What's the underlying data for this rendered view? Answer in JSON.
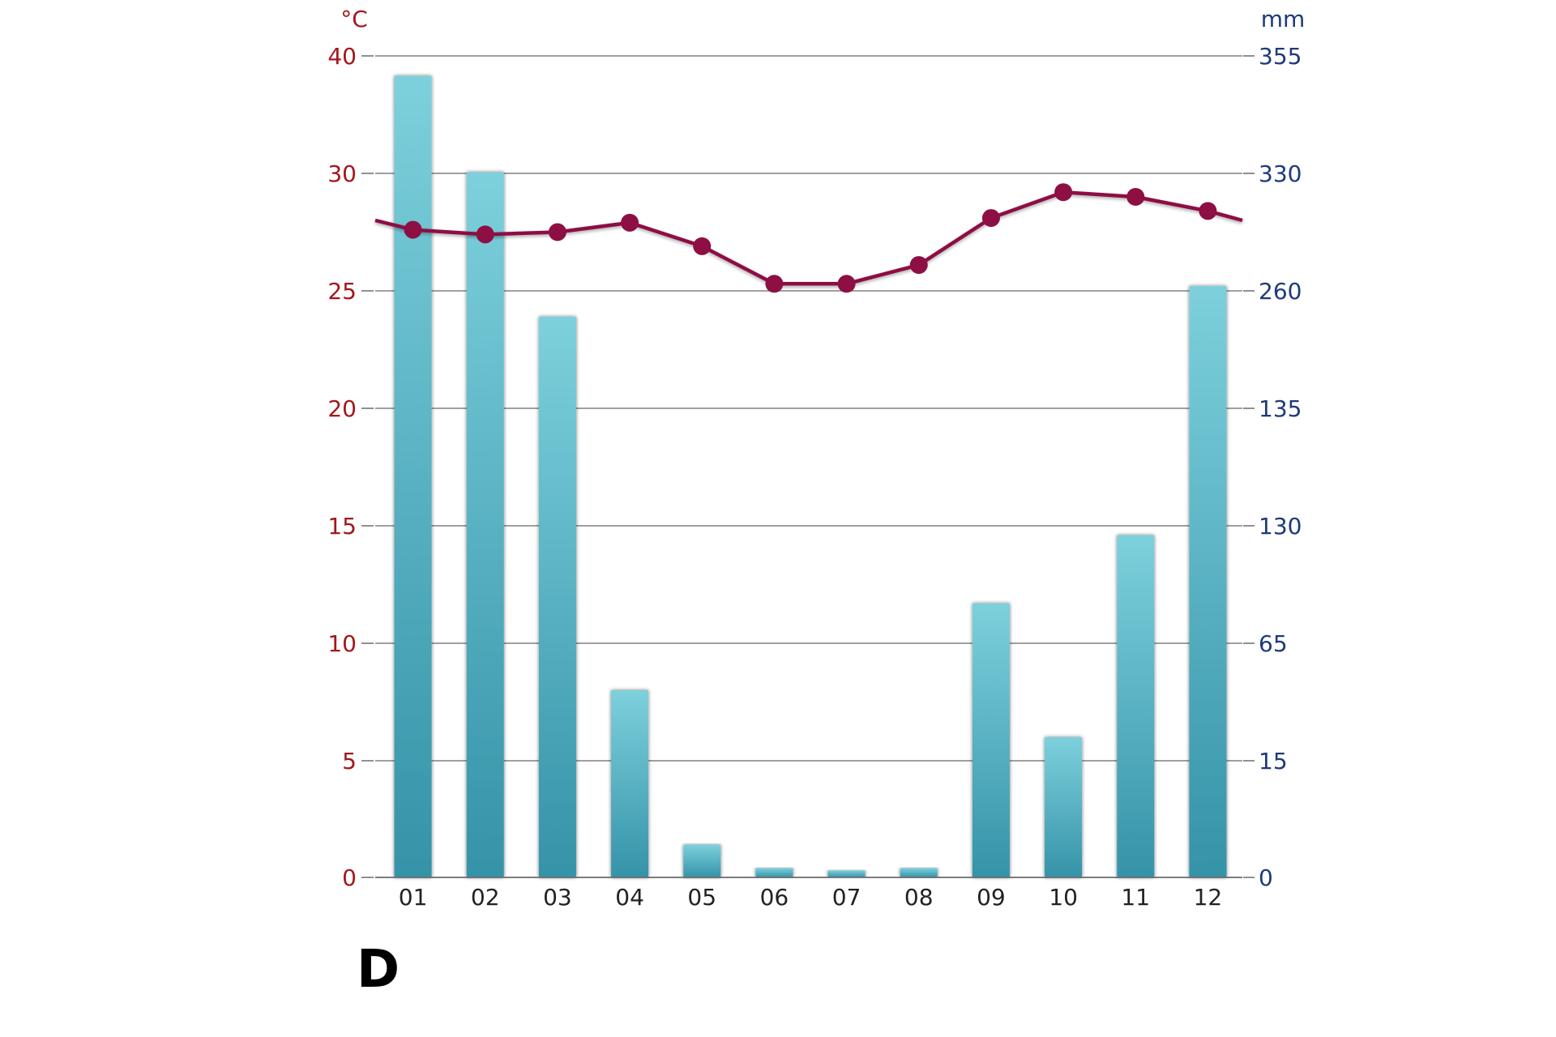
{
  "chart_data": {
    "type": "bar+line",
    "panel_label": "D",
    "categories": [
      "01",
      "02",
      "03",
      "04",
      "05",
      "06",
      "07",
      "08",
      "09",
      "10",
      "11",
      "12"
    ],
    "left_axis": {
      "unit": "°C",
      "ticks": [
        "0",
        "5",
        "10",
        "15",
        "20",
        "25",
        "30",
        "40"
      ],
      "ylim": [
        0,
        40
      ]
    },
    "right_axis": {
      "unit": "mm",
      "ticks": [
        "0",
        "15",
        "65",
        "130",
        "135",
        "260",
        "330",
        "355"
      ]
    },
    "series": [
      {
        "name": "precipitation",
        "type": "bar",
        "axis": "right",
        "color_top": "#7dd0dc",
        "color_bottom": "#3593a8",
        "values_left_scale": [
          38.3,
          30.1,
          23.9,
          8.0,
          1.4,
          0.4,
          0.3,
          0.4,
          11.7,
          6.0,
          14.6,
          25.2
        ]
      },
      {
        "name": "temperature",
        "type": "line",
        "axis": "left",
        "color": "#8e0f44",
        "values": [
          27.6,
          27.4,
          27.5,
          27.9,
          26.9,
          25.3,
          25.3,
          26.1,
          28.1,
          29.2,
          29.0,
          28.4
        ],
        "lead_in": 28.0,
        "lead_out": 28.0
      }
    ],
    "grid": true,
    "grid_color": "#808080"
  }
}
